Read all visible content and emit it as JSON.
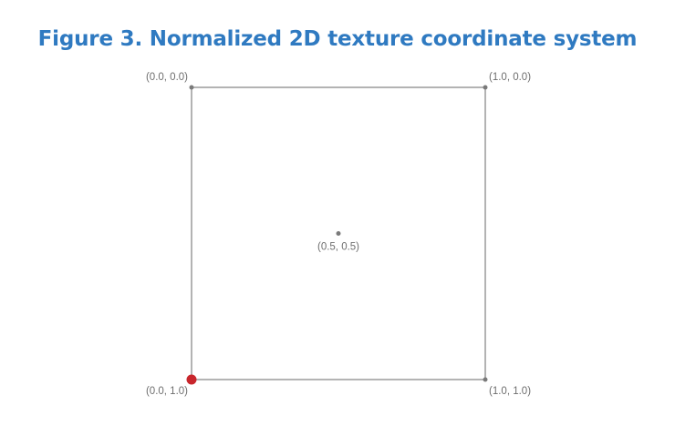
{
  "title": "Figure 3. Normalized 2D texture coordinate system",
  "colors": {
    "title": "#2f7ac1",
    "frame": "#9a9a9a",
    "point": "#7a7a7a",
    "origin_highlight": "#c8262c",
    "label": "#6e6e6e"
  },
  "points": [
    {
      "id": "top-left",
      "u": 0.0,
      "v": 0.0,
      "label": "(0.0, 0.0)",
      "highlight": false
    },
    {
      "id": "top-right",
      "u": 1.0,
      "v": 0.0,
      "label": "(1.0, 0.0)",
      "highlight": false
    },
    {
      "id": "center",
      "u": 0.5,
      "v": 0.5,
      "label": "(0.5, 0.5)",
      "highlight": false
    },
    {
      "id": "bottom-left",
      "u": 0.0,
      "v": 1.0,
      "label": "(0.0, 1.0)",
      "highlight": true
    },
    {
      "id": "bottom-right",
      "u": 1.0,
      "v": 1.0,
      "label": "(1.0, 1.0)",
      "highlight": false
    }
  ]
}
